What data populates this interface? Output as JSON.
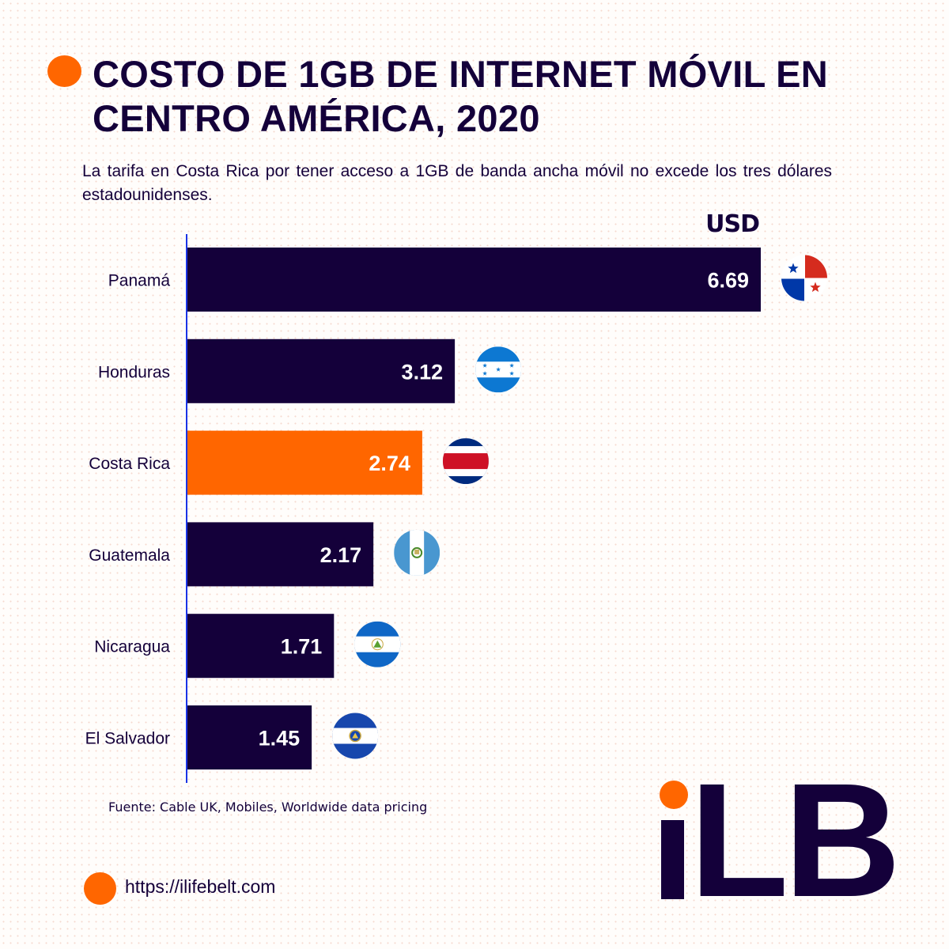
{
  "header": {
    "title": "COSTO DE 1GB DE INTERNET MÓVIL EN CENTRO AMÉRICA, 2020",
    "subtitle": "La tarifa en Costa Rica por tener acceso a 1GB de banda ancha móvil no excede los tres dólares estadounidenses."
  },
  "colors": {
    "primary": "#14003a",
    "highlight": "#ff6600",
    "axis": "#1a33e6"
  },
  "chart_data": {
    "type": "bar",
    "orientation": "horizontal",
    "title": "COSTO DE 1GB DE INTERNET MÓVIL EN CENTRO AMÉRICA, 2020",
    "unit_label": "USD",
    "xlabel": "USD",
    "ylabel": "",
    "xlim": [
      0,
      6.69
    ],
    "grid": false,
    "categories": [
      "Panamá",
      "Honduras",
      "Costa Rica",
      "Guatemala",
      "Nicaragua",
      "El Salvador"
    ],
    "values": [
      6.69,
      3.12,
      2.74,
      2.17,
      1.71,
      1.45
    ],
    "value_labels": [
      "6.69",
      "3.12",
      "2.74",
      "2.17",
      "1.71",
      "1.45"
    ],
    "highlight": "Costa Rica",
    "flag_icons": [
      "panama-flag-icon",
      "honduras-flag-icon",
      "costa-rica-flag-icon",
      "guatemala-flag-icon",
      "nicaragua-flag-icon",
      "el-salvador-flag-icon"
    ]
  },
  "footer": {
    "source": "Fuente: Cable UK, Mobiles, Worldwide data pricing",
    "url": "https://ilifebelt.com",
    "logo": "LB"
  }
}
